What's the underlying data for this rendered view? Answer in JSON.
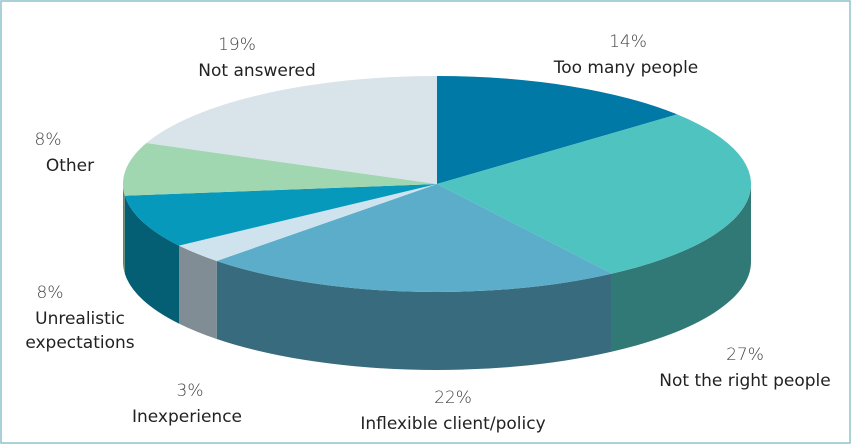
{
  "chart_data": {
    "type": "pie",
    "categories": [
      "Too many people",
      "Not the right people",
      "Inflexible client/policy",
      "Inexperience",
      "Unrealistic expectations",
      "Other",
      "Not answered"
    ],
    "values": [
      14,
      27,
      22,
      3,
      8,
      8,
      19
    ],
    "value_labels": [
      "14%",
      "27%",
      "22%",
      "3%",
      "8%",
      "8%",
      "19%"
    ],
    "colors": [
      "#0079a6",
      "#4fc3c0",
      "#5badc9",
      "#cfe3ee",
      "#0799bb",
      "#a0d6b0",
      "#d8e3ea"
    ]
  }
}
